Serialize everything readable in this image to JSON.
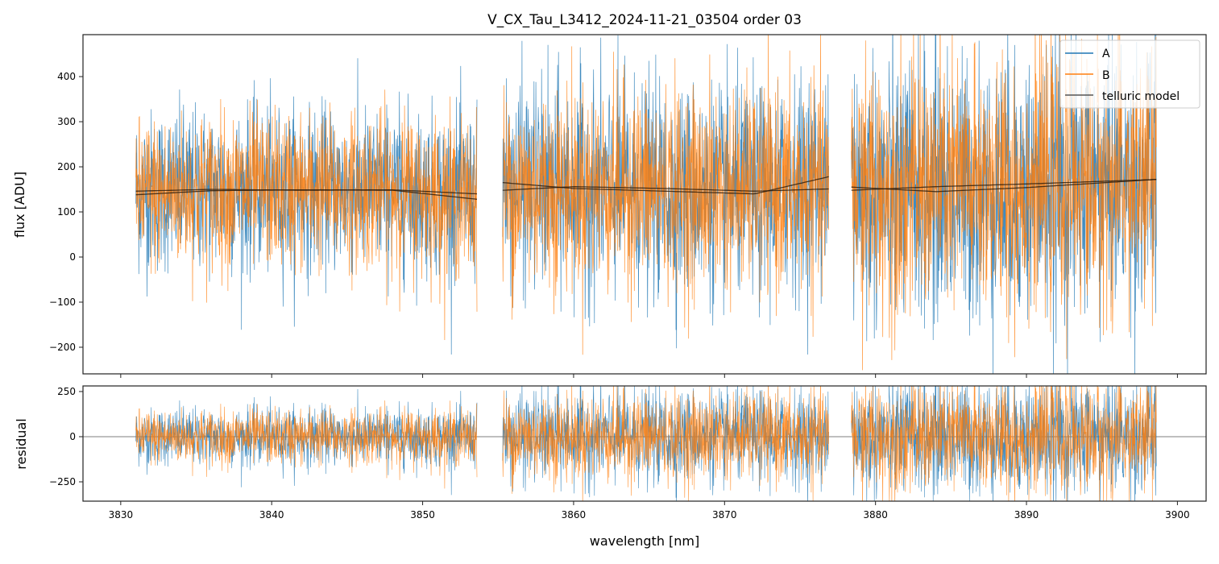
{
  "chart_data": {
    "type": "line",
    "title": "V_CX_Tau_L3412_2024-11-21_03504  order 03",
    "xlabel": "wavelength [nm]",
    "top_panel": {
      "ylabel": "flux [ADU]",
      "ylim": [
        -259,
        493
      ],
      "yticks": [
        -200,
        -100,
        0,
        100,
        200,
        300,
        400
      ],
      "ytick_labels": [
        "−200",
        "−100",
        "0",
        "100",
        "200",
        "300",
        "400"
      ]
    },
    "bottom_panel": {
      "ylabel": "residual",
      "ylim": [
        -357,
        281
      ],
      "yticks": [
        -250,
        0,
        250
      ],
      "ytick_labels": [
        "−250",
        "0",
        "250"
      ]
    },
    "xlim": [
      3827.5,
      3901.9
    ],
    "xticks": [
      3830,
      3840,
      3850,
      3860,
      3870,
      3880,
      3890,
      3900
    ],
    "xtick_labels": [
      "3830",
      "3840",
      "3850",
      "3860",
      "3870",
      "3880",
      "3890",
      "3900"
    ],
    "grid": false,
    "legend": {
      "placement": "top-right",
      "entries": [
        "A",
        "B",
        "telluric model"
      ]
    },
    "colors": {
      "A": "#1f77b4",
      "B": "#ff7f0e",
      "telluric model": "#3a2a1a"
    },
    "segments": [
      {
        "x": [
          3831.0,
          3853.6
        ],
        "model_A": {
          "x": [
            3831.0,
            3836,
            3842,
            3848,
            3853.6
          ],
          "y": [
            146,
            150,
            148,
            149,
            140
          ]
        },
        "model_B": {
          "x": [
            3831.0,
            3836,
            3842,
            3848,
            3853.6
          ],
          "y": [
            138,
            147,
            149,
            148,
            128
          ]
        }
      },
      {
        "x": [
          3855.3,
          3876.9
        ],
        "model_A": {
          "x": [
            3855.3,
            3860,
            3866,
            3872,
            3876.9
          ],
          "y": [
            165,
            152,
            146,
            140,
            178
          ]
        },
        "model_B": {
          "x": [
            3855.3,
            3860,
            3866,
            3872,
            3876.9
          ],
          "y": [
            148,
            156,
            152,
            146,
            151
          ]
        }
      },
      {
        "x": [
          3878.4,
          3898.6
        ],
        "model_A": {
          "x": [
            3878.4,
            3884,
            3890,
            3898.6
          ],
          "y": [
            155,
            145,
            154,
            172
          ]
        },
        "model_B": {
          "x": [
            3878.4,
            3884,
            3890,
            3898.6
          ],
          "y": [
            148,
            156,
            162,
            172
          ]
        }
      }
    ]
  }
}
